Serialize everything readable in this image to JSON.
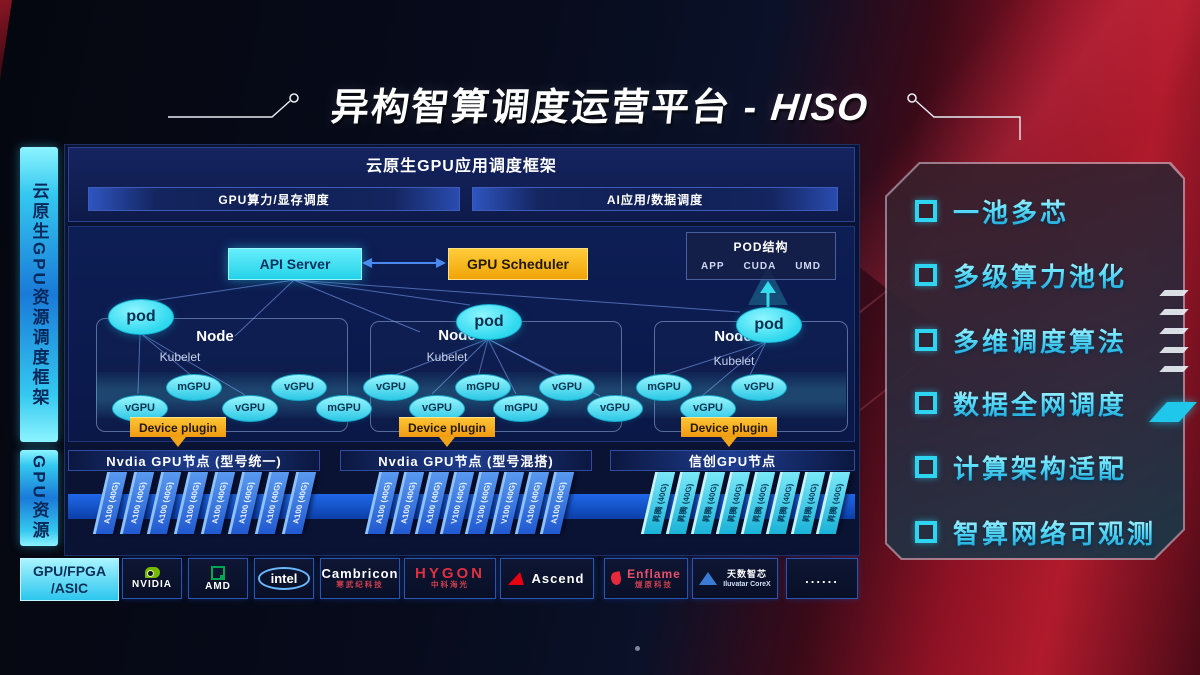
{
  "title": {
    "cn": "异构智算调度运营平台",
    "dash": " - ",
    "en": "HISO"
  },
  "sidebar": {
    "top_label": "云原生GPU资源调度框架",
    "bottom_label": "GPU资源"
  },
  "framework": {
    "title": "云原生GPU应用调度框架",
    "modules": [
      {
        "label": "GPU算力/显存调度"
      },
      {
        "label": "AI应用/数据调度"
      }
    ]
  },
  "control": {
    "api_server": "API Server",
    "gpu_scheduler": "GPU Scheduler"
  },
  "pod_structure": {
    "title": "POD结构",
    "layers": [
      "APP",
      "CUDA",
      "UMD"
    ]
  },
  "clusters": [
    {
      "pod": "pod",
      "node": "Node",
      "agent": "Kubelet",
      "device_plugin": "Device plugin"
    },
    {
      "pod": "pod",
      "node": "Node",
      "agent": "Kubelet",
      "device_plugin": "Device plugin"
    },
    {
      "pod": "pod",
      "node": "Node",
      "agent": "Kubelet",
      "device_plugin": "Device plugin"
    }
  ],
  "gpu_band": {
    "labels": [
      "vGPU",
      "mGPU",
      "vGPU",
      "vGPU",
      "mGPU",
      "vGPU",
      "vGPU",
      "mGPU",
      "mGPU",
      "vGPU",
      "vGPU",
      "mGPU",
      "vGPU",
      "vGPU"
    ]
  },
  "gpu_rows": {
    "groups": [
      {
        "header": "Nvdia GPU节点 (型号统一)",
        "style": "blue",
        "cards": [
          "A100 (40G)",
          "A100 (40G)",
          "A100 (40G)",
          "A100 (40G)",
          "A100 (40G)",
          "A100 (40G)",
          "A100 (40G)",
          "A100 (40G)"
        ]
      },
      {
        "header": "Nvdia GPU节点 (型号混搭)",
        "style": "blue",
        "cards": [
          "A100 (40G)",
          "A100 (40G)",
          "A100 (40G)",
          "V100 (40G)",
          "V100 (40G)",
          "V100 (40G)",
          "A100 (40G)",
          "A100 (40G)"
        ]
      },
      {
        "header": "信创GPU节点",
        "style": "cyan",
        "cards": [
          "昇腾 (40G)",
          "昇腾 (40G)",
          "昇腾 (40G)",
          "昇腾 (40G)",
          "昇腾 (40G)",
          "昇腾 (40G)",
          "昇腾 (40G)",
          "昇腾 (40G)"
        ]
      }
    ]
  },
  "vendors": {
    "category_line1": "GPU/FPGA",
    "category_line2": "/ASIC",
    "items": [
      {
        "id": "nvidia",
        "line1": "NVIDIA"
      },
      {
        "id": "amd",
        "line1": "AMD"
      },
      {
        "id": "intel",
        "line1": "intel"
      },
      {
        "id": "cambricon",
        "line1": "Cambricon",
        "line2": "寒武纪科技"
      },
      {
        "id": "hygon",
        "line1": "HYGON",
        "line2": "中科海光"
      },
      {
        "id": "ascend",
        "line1": "Ascend"
      },
      {
        "id": "enflame",
        "line1": "Enflame",
        "line2": "燧原科技"
      },
      {
        "id": "iluvatar",
        "line1": "天数智芯",
        "line2": "Iluvatar CoreX"
      },
      {
        "id": "more",
        "line1": "......"
      }
    ]
  },
  "features": {
    "items": [
      "一池多芯",
      "多级算力池化",
      "多维调度算法",
      "数据全网调度",
      "计算架构适配",
      "智算网络可观测"
    ]
  },
  "colors": {
    "cyan": "#38d9f2",
    "orange": "#f5a81c",
    "card_blue": "#2e6fe0",
    "card_cyan": "#2fd0ea",
    "accent_red": "#a41a2e"
  }
}
